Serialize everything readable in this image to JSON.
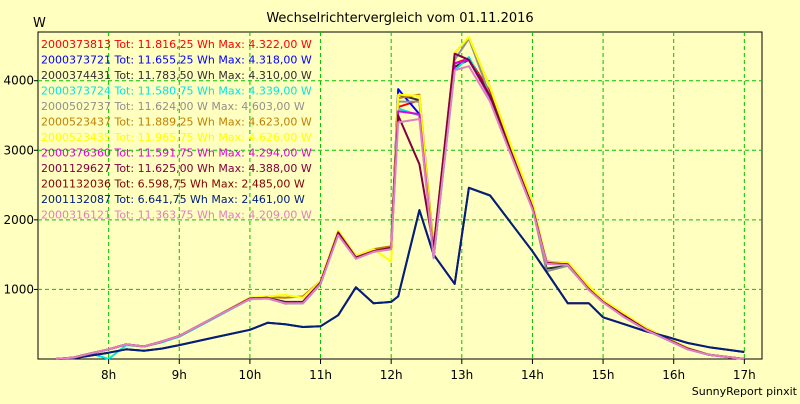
{
  "chart_data": {
    "type": "line",
    "title": "Wechselrichtervergleich vom 01.11.2016",
    "ylabel": "W",
    "footer": "SunnyReport pinxit",
    "xlim": [
      7.0,
      17.25
    ],
    "ylim": [
      0,
      4700
    ],
    "x_ticks": [
      8,
      9,
      10,
      11,
      12,
      13,
      14,
      15,
      16,
      17
    ],
    "x_tick_labels": [
      "8h",
      "9h",
      "10h",
      "11h",
      "12h",
      "13h",
      "14h",
      "15h",
      "16h",
      "17h"
    ],
    "y_ticks": [
      1000,
      2000,
      3000,
      4000
    ],
    "y_tick_labels": [
      "1000",
      "2000",
      "3000",
      "4000"
    ],
    "grid": true,
    "legend_placement": "top-left",
    "series": [
      {
        "name": "2000373813",
        "legend": "2000373813 Tot: 11.816,25 Wh Max: 4.322,00 W",
        "color": "#ff0000",
        "values": [
          0,
          20,
          80,
          140,
          210,
          180,
          250,
          330,
          600,
          870,
          880,
          800,
          820,
          1100,
          1820,
          1460,
          1550,
          1600,
          3620,
          3720,
          1500,
          4250,
          4320,
          3840,
          3000,
          2200,
          1400,
          1380,
          1020,
          830,
          620,
          430,
          290,
          150,
          60,
          0
        ]
      },
      {
        "name": "2000373721",
        "legend": "2000373721 Tot: 11.655,25 Wh Max: 4.318,00 W",
        "color": "#0000ff",
        "values": [
          0,
          20,
          80,
          140,
          210,
          180,
          240,
          330,
          600,
          870,
          880,
          800,
          800,
          1080,
          1800,
          1450,
          1550,
          1600,
          3880,
          3520,
          1450,
          4200,
          4300,
          3760,
          2960,
          2180,
          1390,
          1360,
          1000,
          820,
          610,
          420,
          280,
          140,
          60,
          0
        ]
      },
      {
        "name": "2000374431",
        "legend": "2000374431 Tot: 11.783,50 Wh Max: 4.310,00 W",
        "color": "#303030",
        "values": [
          0,
          20,
          80,
          140,
          210,
          180,
          250,
          330,
          600,
          870,
          880,
          820,
          820,
          1100,
          1820,
          1460,
          1560,
          1600,
          3800,
          3720,
          1500,
          4200,
          4300,
          3800,
          2980,
          2200,
          1300,
          1340,
          1000,
          820,
          620,
          430,
          290,
          150,
          60,
          0
        ]
      },
      {
        "name": "2000373724",
        "legend": "2000373724 Tot: 11.580,75 Wh Max: 4.339,00 W",
        "color": "#00e5e5",
        "values": [
          0,
          20,
          80,
          0,
          200,
          180,
          240,
          320,
          590,
          860,
          870,
          800,
          800,
          1080,
          1800,
          1450,
          1540,
          1580,
          3600,
          3500,
          1450,
          4150,
          4339,
          3740,
          2950,
          2160,
          1380,
          1360,
          1000,
          820,
          600,
          420,
          280,
          140,
          60,
          0
        ]
      },
      {
        "name": "2000502737",
        "legend": "2000502737 Tot: 11.624,00 W Max: 4.603,00 W",
        "color": "#909090",
        "values": [
          0,
          20,
          80,
          140,
          210,
          180,
          250,
          330,
          600,
          870,
          880,
          800,
          800,
          1080,
          1800,
          1450,
          1550,
          1580,
          3700,
          3700,
          1500,
          4300,
          4603,
          3780,
          2950,
          2180,
          1260,
          1340,
          1000,
          820,
          610,
          430,
          290,
          150,
          60,
          0
        ]
      },
      {
        "name": "2000523437",
        "legend": "2000523437 Tot: 11.889,25 Wh Max: 4.623,00 W",
        "color": "#c08000",
        "values": [
          0,
          20,
          80,
          140,
          210,
          180,
          250,
          330,
          600,
          880,
          890,
          880,
          900,
          1120,
          1840,
          1480,
          1580,
          1620,
          3750,
          3800,
          1600,
          4400,
          4623,
          3900,
          3050,
          2250,
          1380,
          1380,
          1040,
          840,
          640,
          450,
          300,
          160,
          60,
          0
        ]
      },
      {
        "name": "2000523435",
        "legend": "2000523435 Tot: 11.965,75 Wh Max: 4.626,00 W",
        "color": "#ffff00",
        "values": [
          0,
          20,
          80,
          140,
          210,
          180,
          250,
          330,
          600,
          880,
          900,
          920,
          880,
          1120,
          1840,
          1480,
          1580,
          1400,
          3800,
          3780,
          1520,
          4400,
          4626,
          3900,
          3060,
          2260,
          1390,
          1390,
          1050,
          850,
          650,
          450,
          300,
          160,
          60,
          0
        ]
      },
      {
        "name": "2000376360",
        "legend": "2000376360 Tot: 11.591,75 Wh Max: 4.294,00 W",
        "color": "#e000e0",
        "values": [
          0,
          20,
          80,
          140,
          210,
          180,
          250,
          330,
          600,
          870,
          880,
          800,
          820,
          1100,
          1800,
          1450,
          1550,
          1600,
          3560,
          3520,
          1480,
          4250,
          4294,
          3760,
          2960,
          2180,
          1380,
          1360,
          1000,
          820,
          620,
          430,
          290,
          150,
          60,
          0
        ]
      },
      {
        "name": "2001129627",
        "legend": "2001129627 Tot: 11.625,00 Wh Max: 4.388,00 W",
        "color": "#800040",
        "values": [
          0,
          20,
          80,
          140,
          210,
          180,
          250,
          330,
          600,
          870,
          880,
          800,
          820,
          1100,
          1820,
          1460,
          1550,
          1600,
          3500,
          2800,
          1600,
          4388,
          4300,
          3780,
          2960,
          2180,
          1380,
          1360,
          1000,
          820,
          620,
          430,
          290,
          150,
          60,
          0
        ]
      },
      {
        "name": "2001132036",
        "legend": "2001132036 Tot: 6.598,75 Wh Max: 2.485,00 W",
        "color": "#800000",
        "values": [
          0,
          10,
          50,
          90,
          140,
          120,
          150,
          200,
          310,
          420,
          520,
          500,
          460,
          470,
          630,
          1030,
          800,
          820,
          900,
          2140,
          1500,
          1080,
          2460,
          2350,
          1950,
          1550,
          1250,
          800,
          800,
          600,
          500,
          400,
          320,
          230,
          170,
          100
        ]
      },
      {
        "name": "2001132087",
        "legend": "2001132087 Tot: 6.641,75 Wh Max: 2.461,00 W",
        "color": "#002080",
        "values": [
          0,
          10,
          50,
          90,
          140,
          120,
          150,
          200,
          310,
          420,
          520,
          500,
          460,
          470,
          630,
          1030,
          800,
          820,
          900,
          2140,
          1500,
          1080,
          2461,
          2350,
          1950,
          1550,
          1250,
          800,
          800,
          600,
          500,
          400,
          320,
          230,
          170,
          100
        ]
      },
      {
        "name": "2000316121",
        "legend": "2000316121 Tot: 11.363,75 Wh Max: 4.209,00 W",
        "color": "#e080c0",
        "values": [
          0,
          20,
          80,
          140,
          210,
          180,
          250,
          330,
          600,
          860,
          870,
          800,
          800,
          1080,
          1780,
          1440,
          1540,
          1580,
          3400,
          3450,
          1450,
          4150,
          4209,
          3700,
          2920,
          2150,
          1370,
          1350,
          990,
          810,
          600,
          420,
          280,
          140,
          60,
          0
        ]
      }
    ],
    "x": [
      7.25,
      7.5,
      7.75,
      8.0,
      8.25,
      8.5,
      8.75,
      9.0,
      9.5,
      10.0,
      10.25,
      10.5,
      10.75,
      11.0,
      11.25,
      11.5,
      11.75,
      12.0,
      12.1,
      12.4,
      12.6,
      12.9,
      13.1,
      13.4,
      13.7,
      14.0,
      14.2,
      14.5,
      14.8,
      15.0,
      15.3,
      15.6,
      15.9,
      16.2,
      16.5,
      17.0
    ]
  }
}
